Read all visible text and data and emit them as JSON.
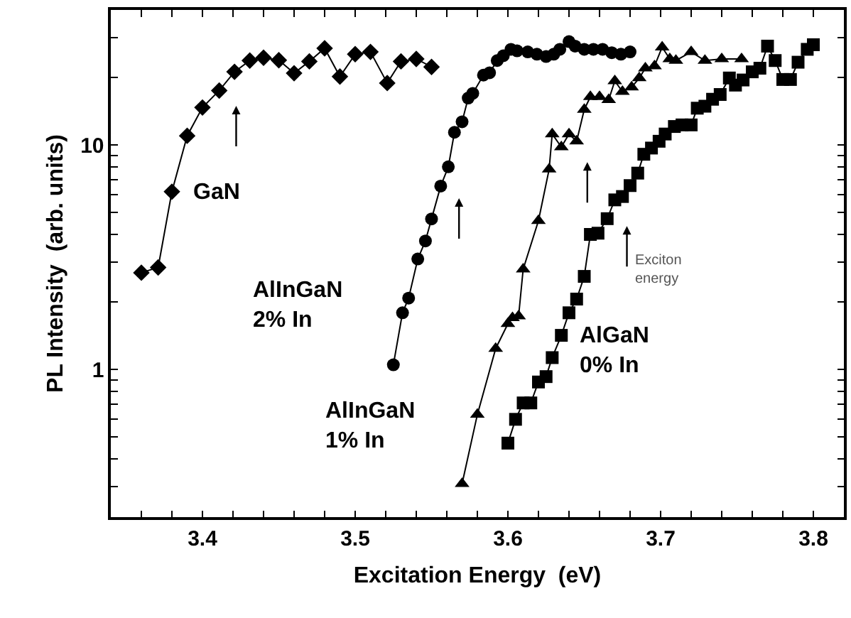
{
  "chart_data": {
    "type": "line",
    "xlabel": "Excitation Energy  (eV)",
    "ylabel": "PL Intensity  (arb. units)",
    "log": "y",
    "grid": false,
    "legend": false,
    "line_style": "solid",
    "xlim": [
      3.34,
      3.82
    ],
    "ylim": [
      0.22,
      40
    ],
    "xticks": [
      {
        "value": 3.36,
        "label": null
      },
      {
        "value": 3.38,
        "label": null
      },
      3.4,
      {
        "value": 3.42,
        "label": null
      },
      {
        "value": 3.44,
        "label": null
      },
      {
        "value": 3.46,
        "label": null
      },
      {
        "value": 3.48,
        "label": null
      },
      3.5,
      {
        "value": 3.52,
        "label": null
      },
      {
        "value": 3.54,
        "label": null
      },
      {
        "value": 3.56,
        "label": null
      },
      {
        "value": 3.58,
        "label": null
      },
      3.6,
      {
        "value": 3.62,
        "label": null
      },
      {
        "value": 3.64,
        "label": null
      },
      {
        "value": 3.66,
        "label": null
      },
      {
        "value": 3.68,
        "label": null
      },
      3.7,
      {
        "value": 3.72,
        "label": null
      },
      {
        "value": 3.74,
        "label": null
      },
      {
        "value": 3.76,
        "label": null
      },
      {
        "value": 3.78,
        "label": null
      },
      3.8
    ],
    "yticks": [
      {
        "value": 0.3,
        "label": null
      },
      {
        "value": 0.4,
        "label": null
      },
      {
        "value": 0.5,
        "label": null
      },
      {
        "value": 0.6,
        "label": null
      },
      {
        "value": 0.7,
        "label": null
      },
      {
        "value": 0.8,
        "label": null
      },
      {
        "value": 0.9,
        "label": null
      },
      1,
      {
        "value": 2,
        "label": null
      },
      {
        "value": 3,
        "label": null
      },
      {
        "value": 4,
        "label": null
      },
      {
        "value": 5,
        "label": null
      },
      {
        "value": 6,
        "label": null
      },
      {
        "value": 7,
        "label": null
      },
      {
        "value": 8,
        "label": null
      },
      {
        "value": 9,
        "label": null
      },
      10,
      {
        "value": 20,
        "label": null
      },
      {
        "value": 30,
        "label": null
      }
    ],
    "series": [
      {
        "color": "#000000",
        "marker": "diamond",
        "x": [
          3.36,
          3.371,
          3.38,
          3.39,
          3.4,
          3.411,
          3.421,
          3.431,
          3.44,
          3.45,
          3.46,
          3.47,
          3.48,
          3.49,
          3.5,
          3.51,
          3.521,
          3.53,
          3.54,
          3.55
        ],
        "values": [
          2.7,
          2.85,
          6.2,
          11.0,
          14.7,
          17.5,
          21.2,
          23.8,
          24.5,
          23.9,
          20.9,
          23.6,
          27.0,
          20.2,
          25.4,
          26.0,
          18.9,
          23.6,
          24.2,
          22.3
        ]
      },
      {
        "color": "#000000",
        "marker": "circle",
        "x": [
          3.525,
          3.531,
          3.535,
          3.541,
          3.546,
          3.55,
          3.556,
          3.561,
          3.565,
          3.57,
          3.574,
          3.577,
          3.584,
          3.588,
          3.593,
          3.597,
          3.602,
          3.606,
          3.613,
          3.619,
          3.625,
          3.63,
          3.634,
          3.64,
          3.644,
          3.65,
          3.656,
          3.662,
          3.668,
          3.674,
          3.68
        ],
        "values": [
          1.05,
          1.79,
          2.08,
          3.11,
          3.74,
          4.69,
          6.57,
          8.0,
          11.4,
          12.7,
          16.2,
          17.0,
          20.5,
          21.0,
          23.8,
          25.0,
          26.7,
          26.3,
          26.0,
          25.4,
          24.8,
          25.4,
          26.7,
          28.9,
          27.6,
          26.7,
          26.7,
          26.7,
          25.8,
          25.4,
          26.0
        ]
      },
      {
        "color": "#000000",
        "marker": "triangle",
        "x": [
          3.57,
          3.58,
          3.592,
          3.6,
          3.603,
          3.607,
          3.61,
          3.62,
          3.627,
          3.629,
          3.635,
          3.64,
          3.645,
          3.65,
          3.654,
          3.66,
          3.666,
          3.67,
          3.675,
          3.681,
          3.686,
          3.69,
          3.696,
          3.701,
          3.706,
          3.71,
          3.72,
          3.729,
          3.74,
          3.753
        ],
        "values": [
          0.31,
          0.63,
          1.24,
          1.6,
          1.7,
          1.73,
          2.8,
          4.6,
          7.8,
          11.2,
          9.8,
          11.2,
          10.4,
          14.4,
          16.4,
          16.4,
          15.9,
          19.3,
          17.3,
          18.1,
          19.9,
          22.0,
          22.5,
          27.3,
          24.2,
          23.8,
          26.0,
          23.8,
          24.2,
          24.2
        ]
      },
      {
        "color": "#000000",
        "marker": "square",
        "x": [
          3.6,
          3.605,
          3.61,
          3.615,
          3.62,
          3.625,
          3.629,
          3.635,
          3.64,
          3.645,
          3.65,
          3.654,
          3.659,
          3.665,
          3.67,
          3.675,
          3.68,
          3.685,
          3.689,
          3.694,
          3.699,
          3.703,
          3.709,
          3.714,
          3.72,
          3.724,
          3.729,
          3.734,
          3.739,
          3.745,
          3.749,
          3.754,
          3.76,
          3.765,
          3.77,
          3.775,
          3.78,
          3.785,
          3.79,
          3.796,
          3.8
        ],
        "values": [
          0.47,
          0.6,
          0.71,
          0.71,
          0.88,
          0.93,
          1.13,
          1.42,
          1.79,
          2.06,
          2.6,
          4.0,
          4.05,
          4.7,
          5.7,
          5.9,
          6.6,
          7.5,
          9.1,
          9.7,
          10.4,
          11.2,
          12.1,
          12.3,
          12.3,
          14.6,
          14.9,
          16.0,
          16.8,
          19.9,
          18.5,
          19.5,
          21.2,
          22.0,
          27.6,
          23.8,
          19.6,
          19.6,
          23.4,
          26.7,
          28.0
        ]
      }
    ],
    "annotations": [
      "GaN",
      "AlInGaN\n2% In",
      "AlInGaN\n1% In",
      "AlGaN\n0% In",
      "Exciton\nenergy"
    ]
  }
}
